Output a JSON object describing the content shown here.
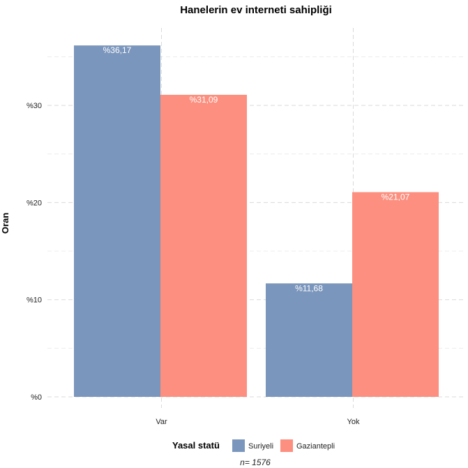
{
  "chart_data": {
    "type": "bar",
    "title": "Hanelerin ev interneti sahipliği",
    "xlabel": "",
    "ylabel": "Oran",
    "categories": [
      "Var",
      "Yok"
    ],
    "series": [
      {
        "name": "Suriyeli",
        "color": "#7b96bc",
        "values": [
          36.17,
          11.68
        ],
        "labels": [
          "%36,17",
          "%11,68"
        ]
      },
      {
        "name": "Gaziantepli",
        "color": "#fc8f7f",
        "values": [
          31.09,
          21.07
        ],
        "labels": [
          "%31,09",
          "%21,07"
        ]
      }
    ],
    "ylim": [
      0,
      38
    ],
    "yticks": [
      0,
      10,
      20,
      30
    ],
    "ytick_labels": [
      "%0",
      "%10",
      "%20",
      "%30"
    ],
    "grid": true,
    "legend": {
      "title": "Yasal statü",
      "position": "bottom"
    },
    "caption": "n= 1576"
  }
}
